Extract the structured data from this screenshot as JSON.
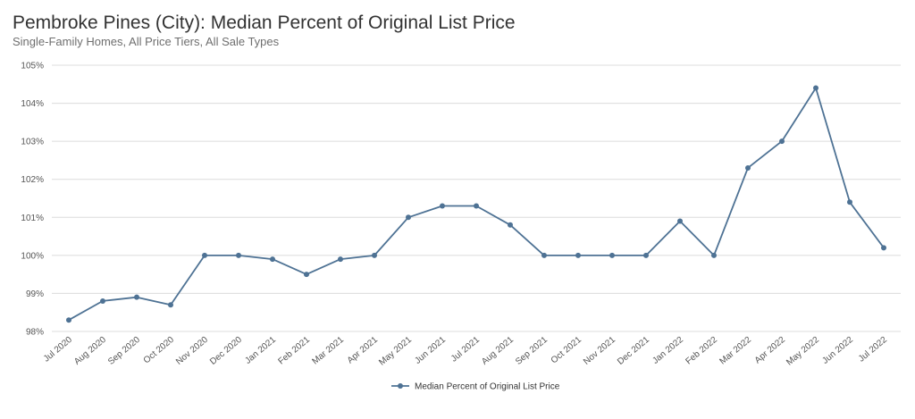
{
  "header": {
    "title": "Pembroke Pines (City): Median Percent of Original List Price",
    "subtitle": "Single-Family Homes, All Price Tiers, All Sale Types"
  },
  "chart_data": {
    "type": "line",
    "title": "Pembroke Pines (City): Median Percent of Original List Price",
    "subtitle": "Single-Family Homes, All Price Tiers, All Sale Types",
    "xlabel": "",
    "ylabel": "",
    "categories": [
      "Jul 2020",
      "Aug 2020",
      "Sep 2020",
      "Oct 2020",
      "Nov 2020",
      "Dec 2020",
      "Jan 2021",
      "Feb 2021",
      "Mar 2021",
      "Apr 2021",
      "May 2021",
      "Jun 2021",
      "Jul 2021",
      "Aug 2021",
      "Sep 2021",
      "Oct 2021",
      "Nov 2021",
      "Dec 2021",
      "Jan 2022",
      "Feb 2022",
      "Mar 2022",
      "Apr 2022",
      "May 2022",
      "Jun 2022",
      "Jul 2022"
    ],
    "series": [
      {
        "name": "Median Percent of Original List Price",
        "color": "#4e7294",
        "values": [
          98.3,
          98.8,
          98.9,
          98.7,
          100.0,
          100.0,
          99.9,
          99.5,
          99.9,
          100.0,
          101.0,
          101.3,
          101.3,
          100.8,
          100.0,
          100.0,
          100.0,
          100.0,
          100.9,
          100.0,
          102.3,
          103.0,
          104.4,
          101.4,
          100.2
        ]
      }
    ],
    "ylim": [
      98,
      105
    ],
    "yticks": [
      98,
      99,
      100,
      101,
      102,
      103,
      104,
      105
    ],
    "ytick_suffix": "%",
    "grid": true,
    "legend_position": "bottom-center"
  }
}
